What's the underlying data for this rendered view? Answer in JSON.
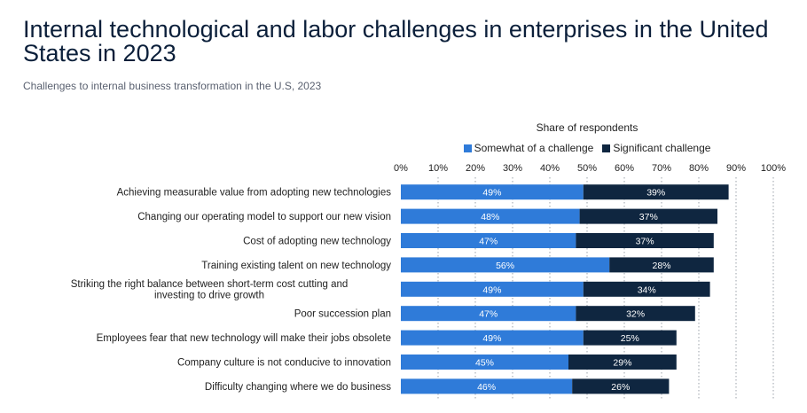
{
  "chart_data": {
    "type": "bar",
    "orientation": "horizontal",
    "stacked": true,
    "title": "Internal technological and labor challenges in enterprises in the United States in 2023",
    "subtitle": "Challenges to internal business transformation in the U.S, 2023",
    "xlabel": "Share of respondents",
    "xlim": [
      0,
      100
    ],
    "ticks": [
      "0%",
      "10%",
      "20%",
      "30%",
      "40%",
      "50%",
      "60%",
      "70%",
      "80%",
      "90%",
      "100%"
    ],
    "grid": true,
    "legend_position": "top",
    "categories": [
      "Achieving measurable value from adopting new technologies",
      "Changing our operating model to support our new vision",
      "Cost of adopting new technology",
      "Training existing talent on new technology",
      "Striking the right balance between short-term cost cutting and investing to drive growth",
      "Poor succession plan",
      "Employees fear that new technology will make their jobs obsolete",
      "Company culture is not conducive to innovation",
      "Difficulty changing where we do business"
    ],
    "series": [
      {
        "name": "Somewhat of a challenge",
        "color": "#2f7bd9",
        "values": [
          49,
          48,
          47,
          56,
          49,
          47,
          49,
          45,
          46
        ],
        "labels": [
          "49%",
          "48%",
          "47%",
          "56%",
          "49%",
          "47%",
          "49%",
          "45%",
          "46%"
        ]
      },
      {
        "name": "Significant challenge",
        "color": "#0f2640",
        "values": [
          39,
          37,
          37,
          28,
          34,
          32,
          25,
          29,
          26
        ],
        "labels": [
          "39%",
          "37%",
          "37%",
          "28%",
          "34%",
          "32%",
          "25%",
          "29%",
          "26%"
        ]
      }
    ]
  }
}
